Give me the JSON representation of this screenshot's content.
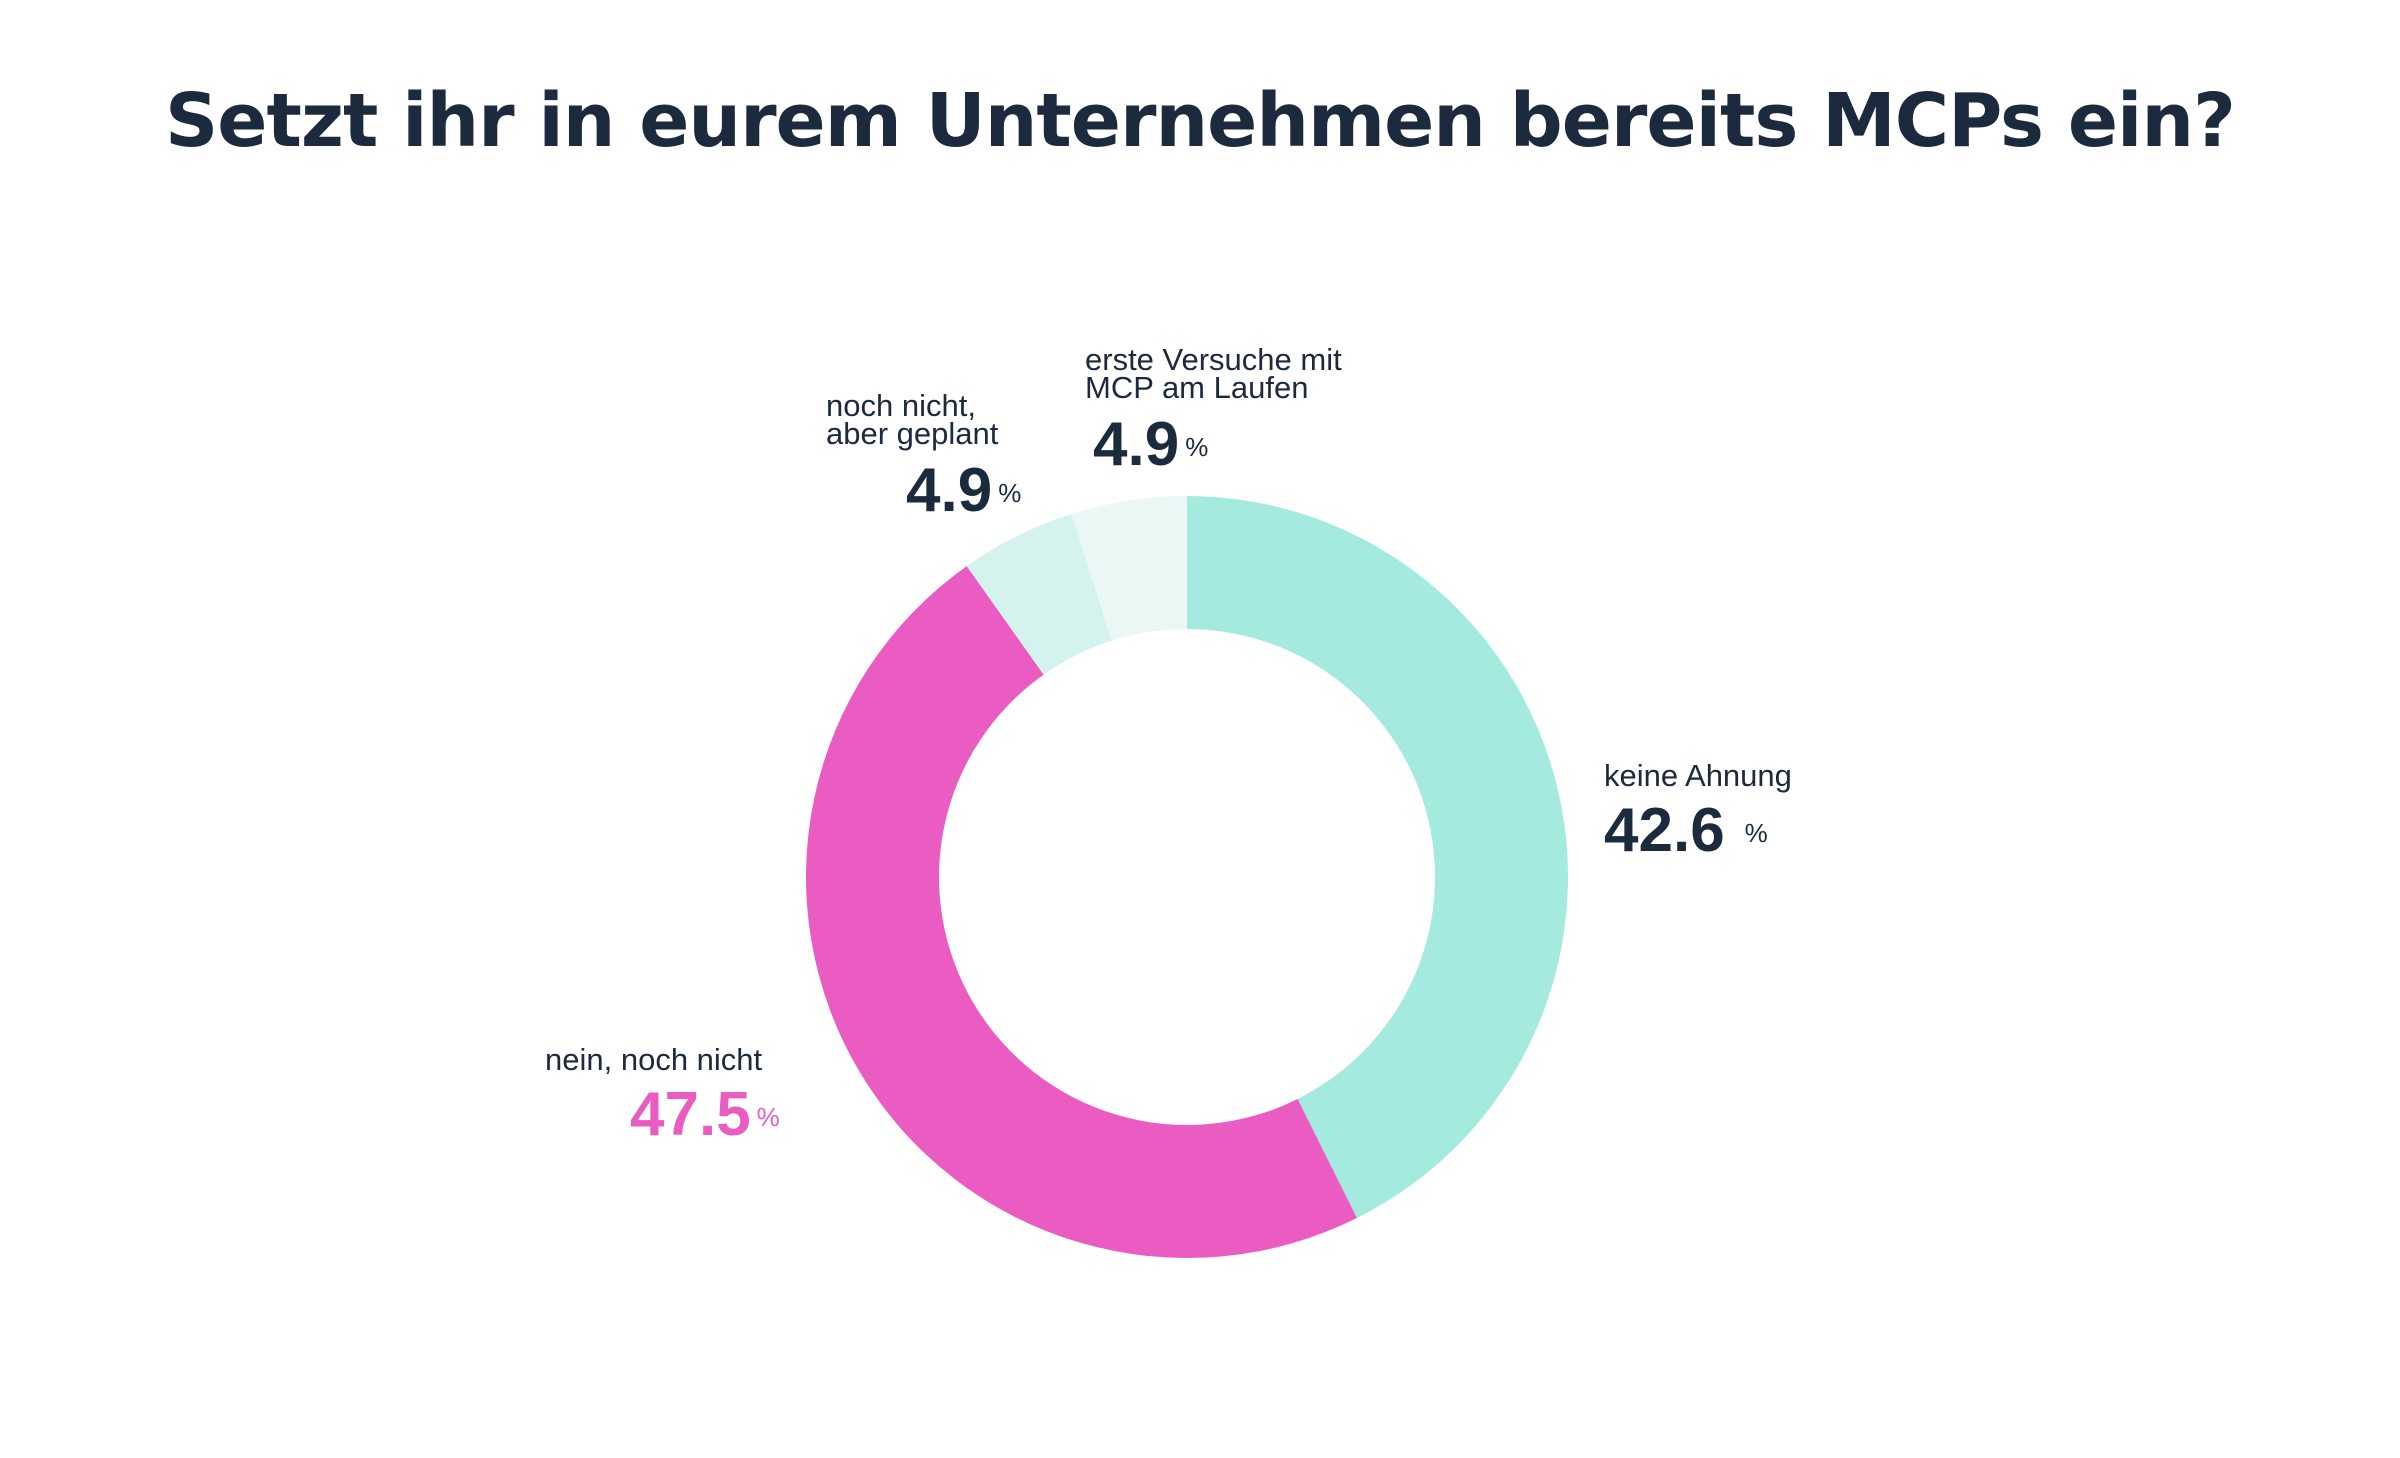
{
  "chart_data": {
    "type": "pie",
    "variant": "donut",
    "title": "Setzt ihr in eurem Unternehmen bereits MCPs ein?",
    "unit": "%",
    "slices": [
      {
        "label": "keine Ahnung",
        "value": 42.6,
        "value_text": "42.6",
        "color": "#a5eadf"
      },
      {
        "label": "nein, noch nicht",
        "value": 47.5,
        "value_text": "47.5",
        "color": "#ea5cc1"
      },
      {
        "label": "noch nicht,\naber geplant",
        "value": 4.9,
        "value_text": "4.9",
        "color": "#d4f3ee"
      },
      {
        "label": "erste Versuche mit\nMCP am Laufen",
        "value": 4.9,
        "value_text": "4.9",
        "color": "#eaf7f5"
      }
    ]
  }
}
